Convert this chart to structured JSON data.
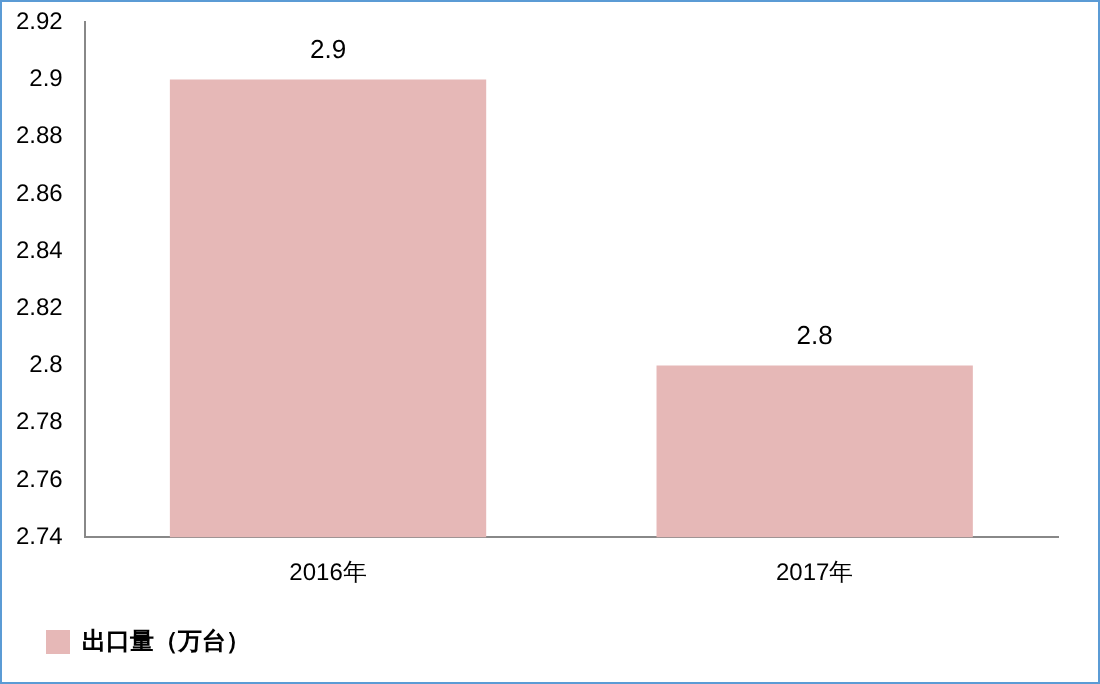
{
  "chart_data": {
    "type": "bar",
    "categories": [
      "2016年",
      "2017年"
    ],
    "series": [
      {
        "name": "出口量（万台）",
        "color": "#e6b8b7",
        "values": [
          2.9,
          2.8
        ]
      }
    ],
    "ylim": [
      2.74,
      2.92
    ],
    "yticks": [
      2.74,
      2.76,
      2.78,
      2.8,
      2.82,
      2.84,
      2.86,
      2.88,
      2.9,
      2.92
    ],
    "grid": false,
    "legend": "bottom left",
    "data_labels": true
  }
}
